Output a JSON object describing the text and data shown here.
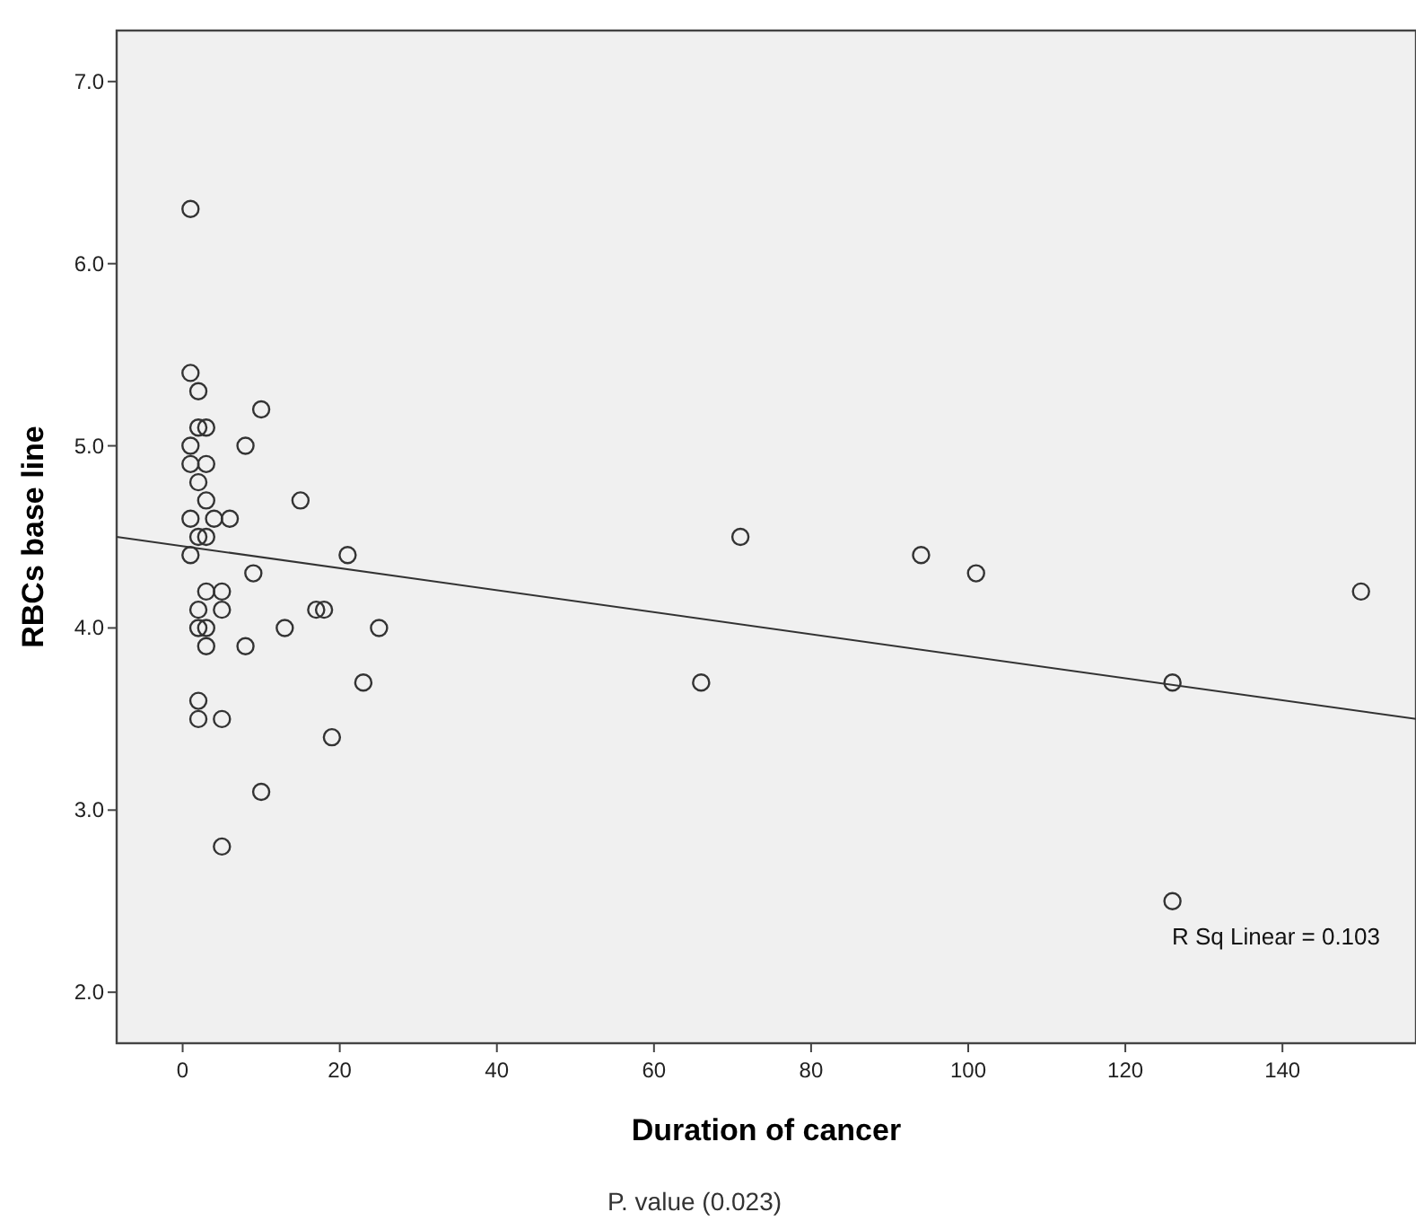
{
  "chart_data": {
    "type": "scatter",
    "xlabel": "Duration of cancer",
    "ylabel": "RBCs base line",
    "xlim": [
      -8.4,
      157
    ],
    "ylim": [
      1.72,
      7.28
    ],
    "xticks": [
      0,
      20,
      40,
      60,
      80,
      100,
      120,
      140
    ],
    "yticks": [
      {
        "value": 2,
        "label": "2.0"
      },
      {
        "value": 3,
        "label": "3.0"
      },
      {
        "value": 4,
        "label": "4.0"
      },
      {
        "value": 5,
        "label": "5.0"
      },
      {
        "value": 6,
        "label": "6.0"
      },
      {
        "value": 7,
        "label": "7.0"
      }
    ],
    "grid": false,
    "marker": "circle",
    "series": [
      {
        "color": "#333333",
        "x": [
          1,
          1,
          2,
          10,
          2,
          3,
          1,
          8,
          1,
          3,
          2,
          3,
          15,
          1,
          4,
          6,
          2,
          3,
          71,
          1,
          21,
          94,
          9,
          101,
          3,
          5,
          150,
          2,
          5,
          17,
          18,
          2,
          3,
          13,
          25,
          3,
          8,
          23,
          66,
          126,
          2,
          2,
          5,
          19,
          10,
          5,
          126
        ],
        "values": [
          6.3,
          5.4,
          5.3,
          5.2,
          5.1,
          5.1,
          5.0,
          5.0,
          4.9,
          4.9,
          4.8,
          4.7,
          4.7,
          4.6,
          4.6,
          4.6,
          4.5,
          4.5,
          4.5,
          4.4,
          4.4,
          4.4,
          4.3,
          4.3,
          4.2,
          4.2,
          4.2,
          4.1,
          4.1,
          4.1,
          4.1,
          4.0,
          4.0,
          4.0,
          4.0,
          3.9,
          3.9,
          3.7,
          3.7,
          3.7,
          3.6,
          3.5,
          3.5,
          3.4,
          3.1,
          2.8,
          2.5
        ]
      },
      {
        "type": "line",
        "color": "#333333",
        "x": [
          -8.4,
          157
        ],
        "values": [
          4.5,
          3.5
        ],
        "marker": "none"
      }
    ],
    "annotations": [
      "R Sq Linear = 0.103",
      "P. value (0.023)"
    ]
  }
}
